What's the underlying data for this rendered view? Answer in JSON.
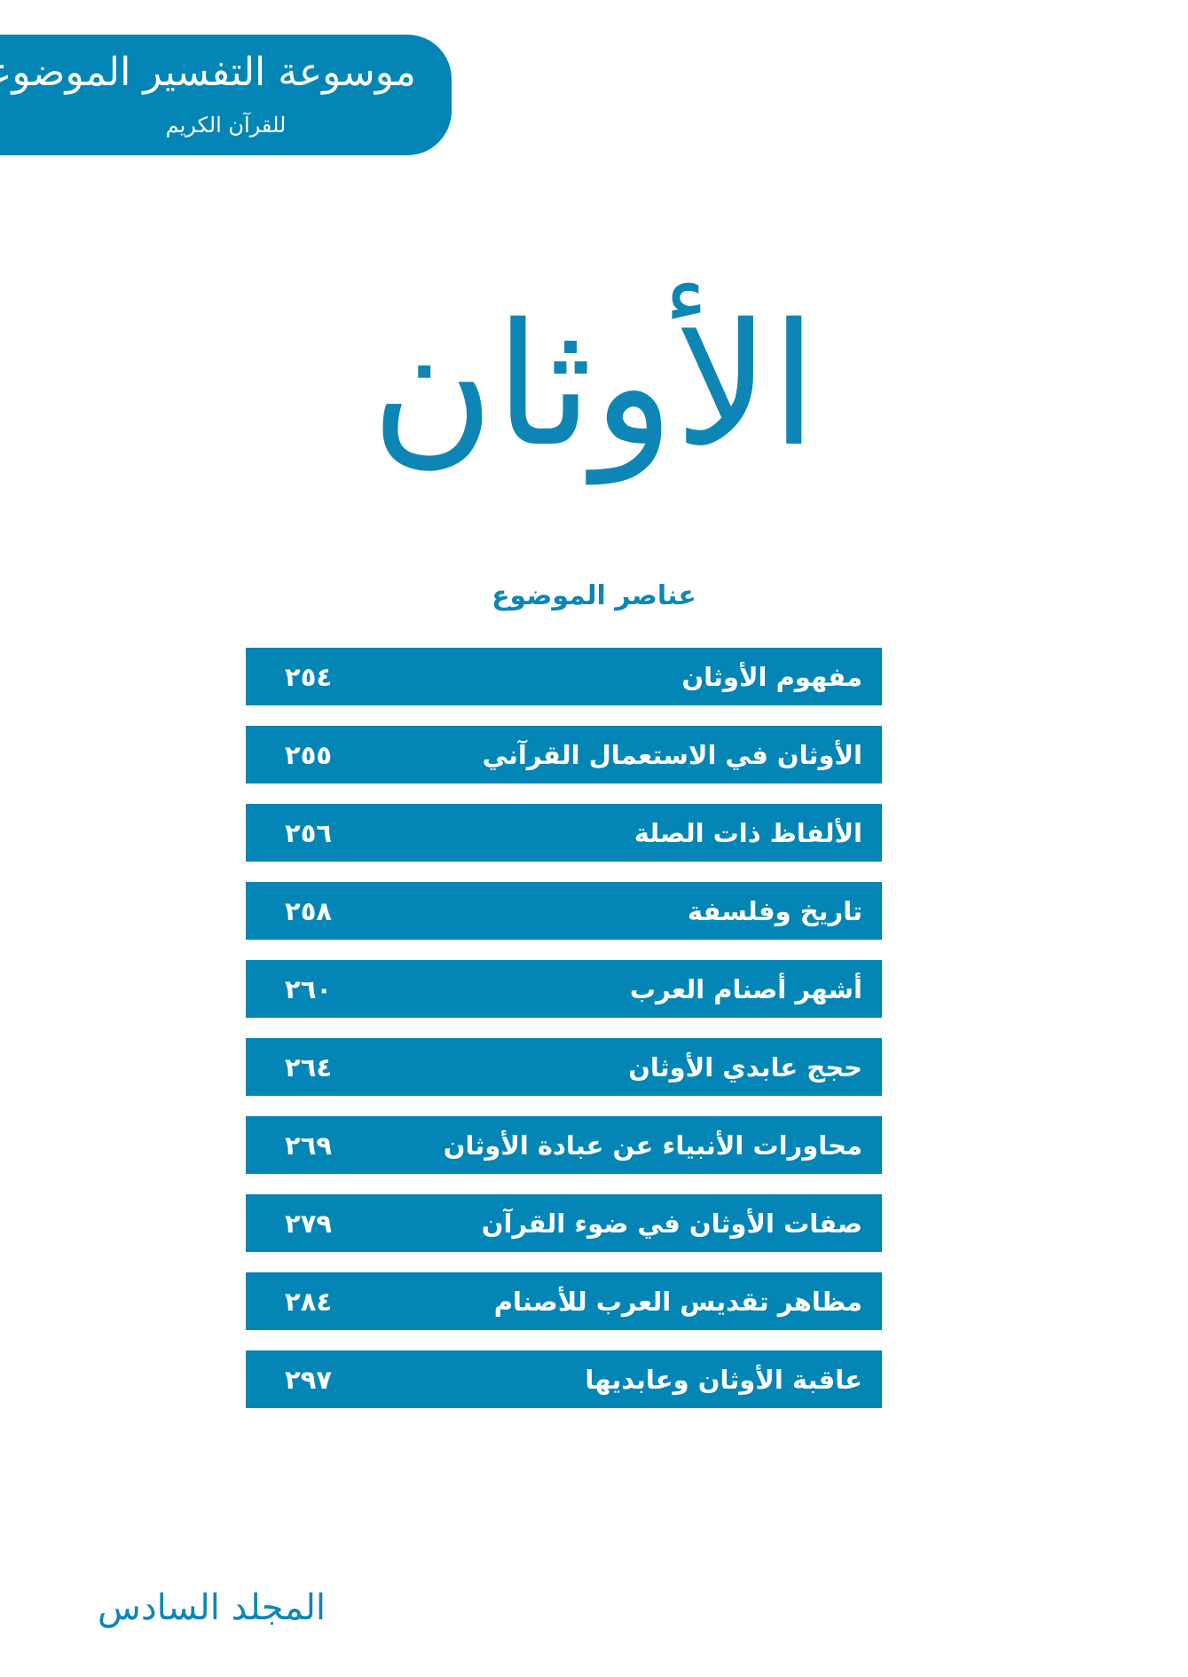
{
  "header": {
    "series_title": "موسوعة التفسير الموضوعي",
    "series_subtitle": "للقرآن الكريم"
  },
  "title": "الأوثان",
  "contents_heading": "عناصر الموضوع",
  "contents": [
    {
      "label": "مفهوم الأوثان",
      "page": "٢٥٤"
    },
    {
      "label": "الأوثان في الاستعمال القرآني",
      "page": "٢٥٥"
    },
    {
      "label": "الألفاظ ذات الصلة",
      "page": "٢٥٦"
    },
    {
      "label": "تاريخ وفلسفة",
      "page": "٢٥٨"
    },
    {
      "label": "أشهر أصنام العرب",
      "page": "٢٦٠"
    },
    {
      "label": "حجج عابدي الأوثان",
      "page": "٢٦٤"
    },
    {
      "label": "محاورات الأنبياء عن عبادة الأوثان",
      "page": "٢٦٩"
    },
    {
      "label": "صفات الأوثان في ضوء القرآن",
      "page": "٢٧٩"
    },
    {
      "label": "مظاهر تقديس العرب للأصنام",
      "page": "٢٨٤"
    },
    {
      "label": "عاقبة الأوثان وعابديها",
      "page": "٢٩٧"
    }
  ],
  "volume": "المجلد السادس",
  "colors": {
    "accent": "#0385b6"
  }
}
